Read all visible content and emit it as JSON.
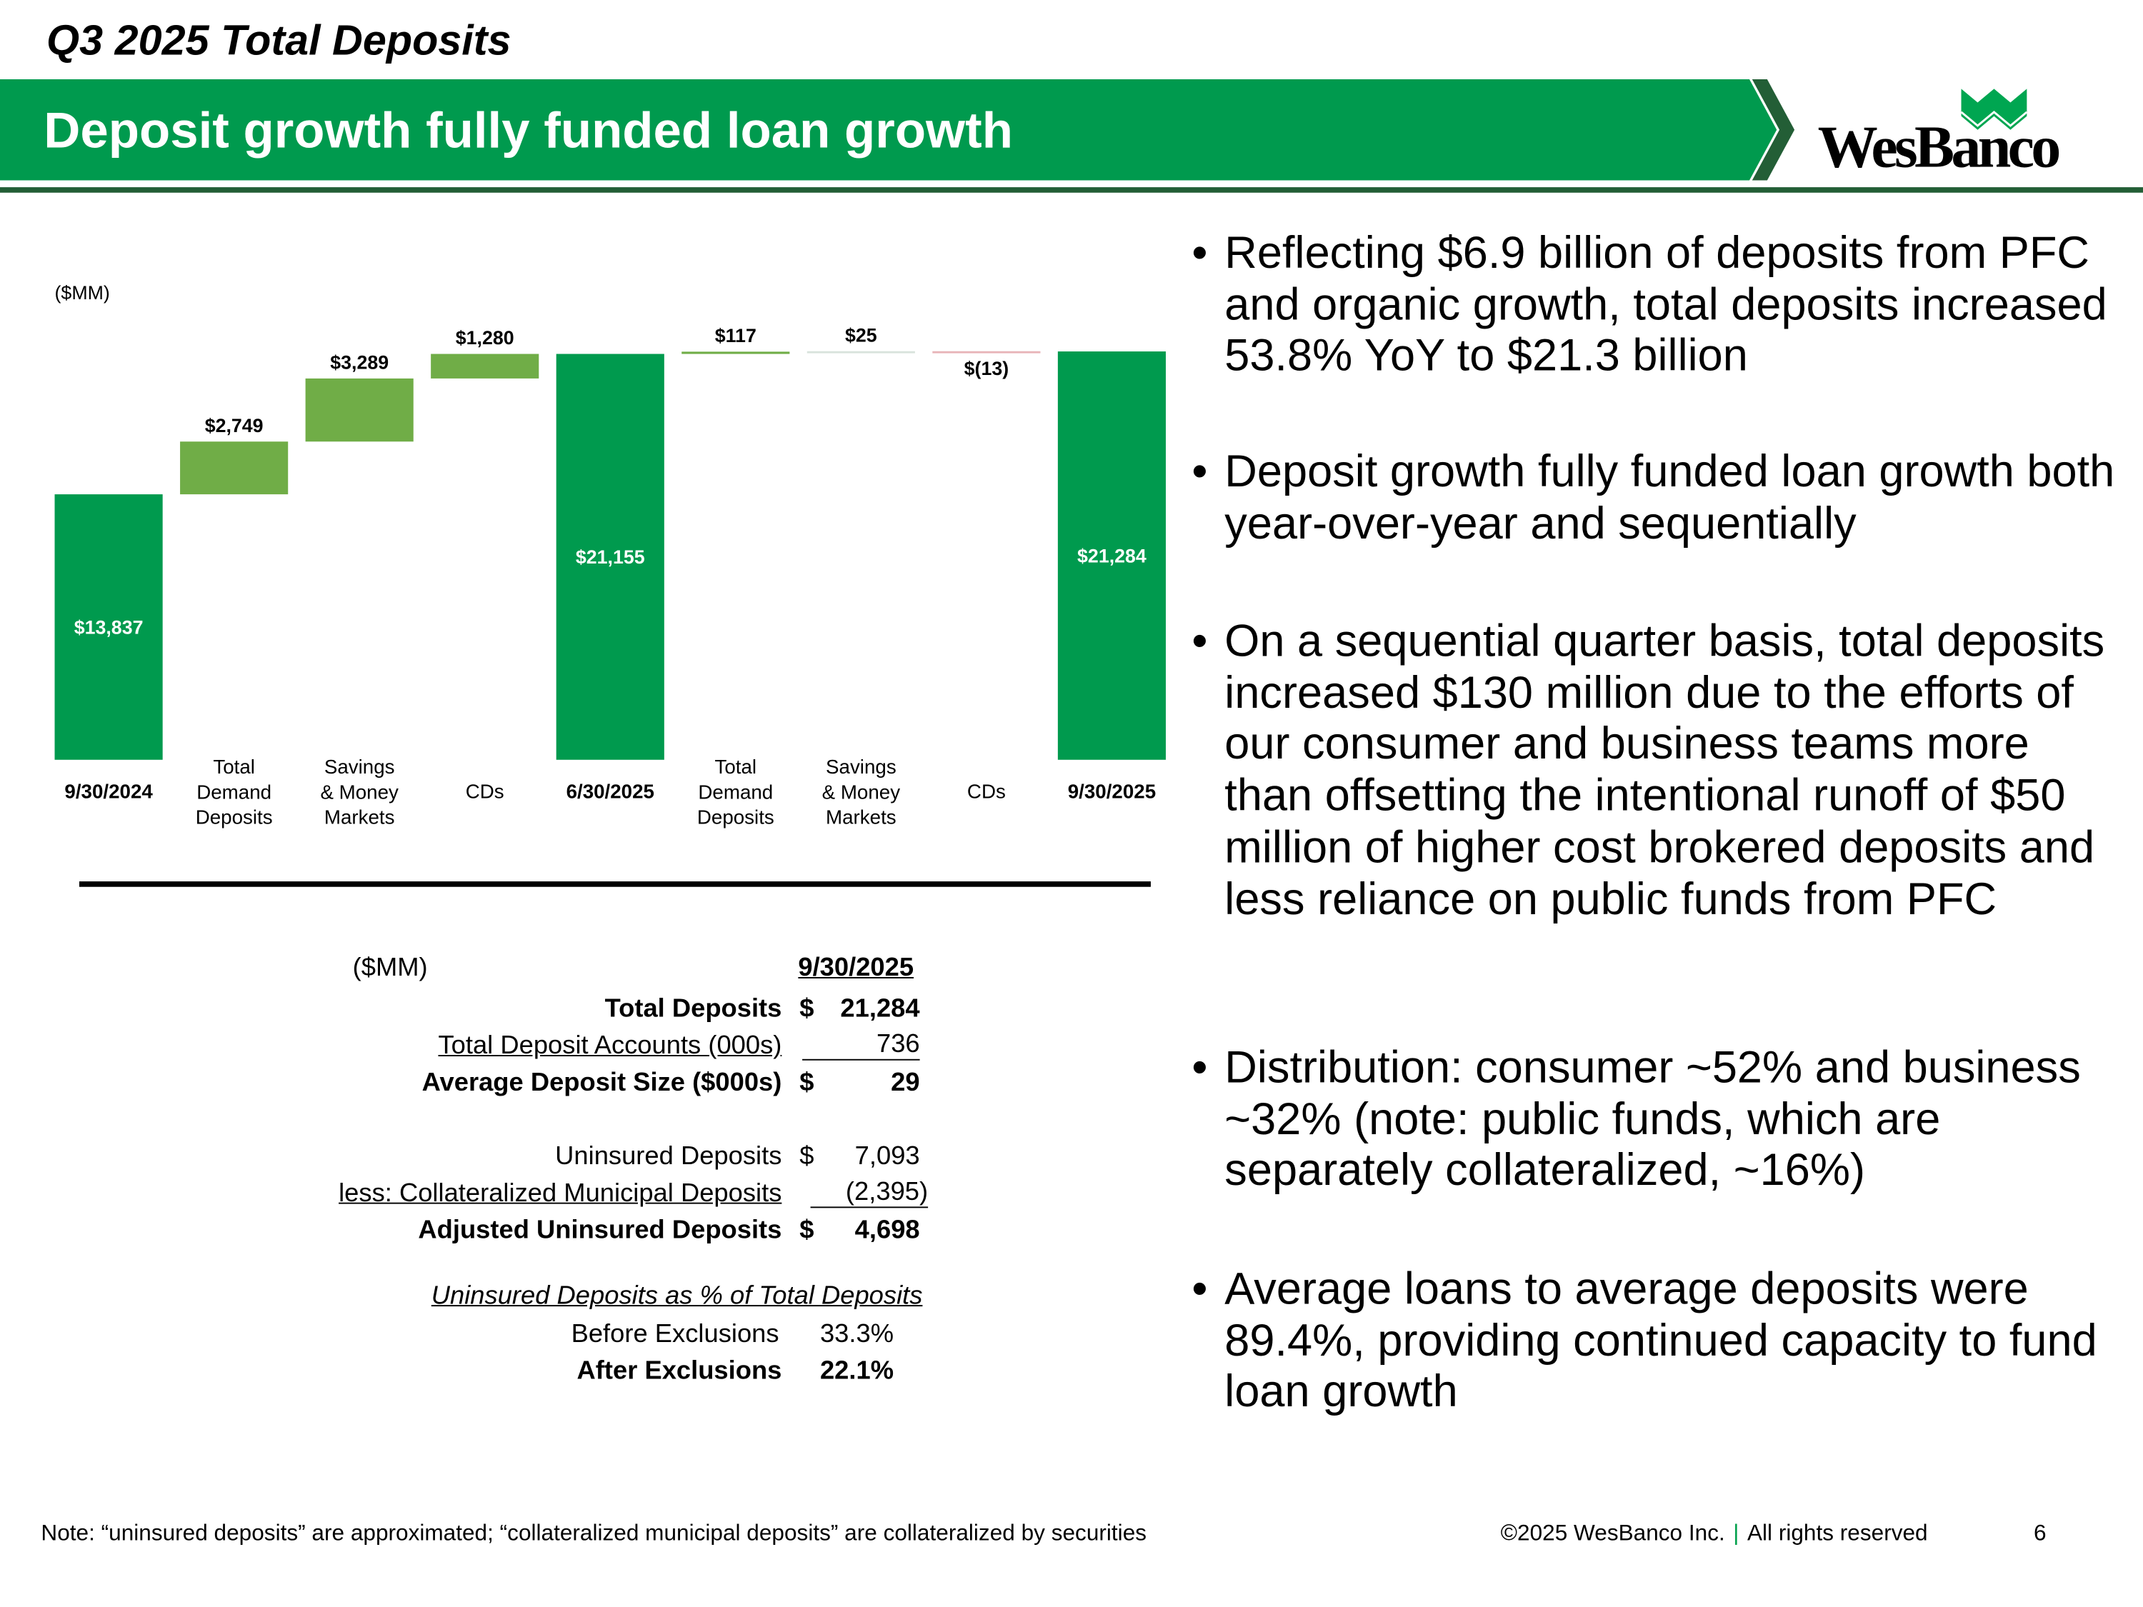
{
  "header": {
    "title": "Q3 2025 Total Deposits",
    "subtitle": "Deposit growth fully funded loan growth",
    "logo_text": "WesBanco",
    "brand_color": "#009a4e",
    "dark_green": "#235e36",
    "light_green": "#70ad47"
  },
  "chart_data": {
    "type": "waterfall",
    "unit_label": "($MM)",
    "categories": [
      "9/30/2024",
      "Total Demand Deposits",
      "Savings & Money Markets",
      "CDs",
      "6/30/2025",
      "Total Demand Deposits",
      "Savings & Money Markets",
      "CDs",
      "9/30/2025"
    ],
    "category_lines": [
      [
        "9/30/2024"
      ],
      [
        "Total",
        "Demand",
        "Deposits"
      ],
      [
        "Savings",
        "& Money",
        "Markets"
      ],
      [
        "CDs"
      ],
      [
        "6/30/2025"
      ],
      [
        "Total",
        "Demand",
        "Deposits"
      ],
      [
        "Savings",
        "& Money",
        "Markets"
      ],
      [
        "CDs"
      ],
      [
        "9/30/2025"
      ]
    ],
    "kinds": [
      "total",
      "delta",
      "delta",
      "delta",
      "total",
      "delta",
      "delta",
      "delta",
      "total"
    ],
    "values": [
      13837,
      2749,
      3289,
      1280,
      21155,
      117,
      25,
      -13,
      21284
    ],
    "labels": [
      "$13,837",
      "$2,749",
      "$3,289",
      "$1,280",
      "$21,155",
      "$117",
      "$25",
      "$(13)",
      "$21,284"
    ],
    "bold_categories": [
      true,
      false,
      false,
      false,
      true,
      false,
      false,
      false,
      true
    ],
    "ylim": [
      0,
      21284
    ]
  },
  "table": {
    "unit": "($MM)",
    "col_header": "9/30/2025",
    "rows": [
      {
        "label": "Total Deposits",
        "cur": "$",
        "value": "21,284"
      },
      {
        "label": "Total Deposit Accounts (000s)",
        "cur": "",
        "value": "736"
      },
      {
        "label": "Average Deposit Size ($000s)",
        "cur": "$",
        "value": "29"
      },
      {
        "label": "Uninsured Deposits",
        "cur": "$",
        "value": "7,093"
      },
      {
        "label": "less: Collateralized Municipal Deposits",
        "cur": "",
        "value": "(2,395)"
      },
      {
        "label": "Adjusted Uninsured Deposits",
        "cur": "$",
        "value": "4,698"
      }
    ],
    "pct_header": "Uninsured Deposits as % of Total Deposits",
    "pct_rows": [
      {
        "label": "Before Exclusions",
        "value": "33.3%"
      },
      {
        "label": "After Exclusions",
        "value": "22.1%"
      }
    ]
  },
  "bullets": [
    "Reflecting $6.9 billion of deposits from PFC and organic growth, total deposits increased 53.8% YoY to $21.3 billion",
    "Deposit growth fully funded loan growth both year-over-year and sequentially",
    "On a sequential quarter basis, total deposits increased $130 million due to the efforts of our consumer and business teams more than offsetting the intentional runoff of $50 million of higher cost brokered deposits and less reliance on public funds from PFC",
    "Distribution: consumer ~52% and business ~32% (note: public funds, which are separately collateralized, ~16%)",
    "Average loans to average deposits were 89.4%, providing continued capacity to fund loan growth"
  ],
  "footer": {
    "note": "Note: “uninsured deposits” are approximated; “collateralized municipal deposits” are collateralized by securities",
    "copyright": "©2025 WesBanco Inc.",
    "rights": "All rights reserved",
    "page": "6"
  }
}
